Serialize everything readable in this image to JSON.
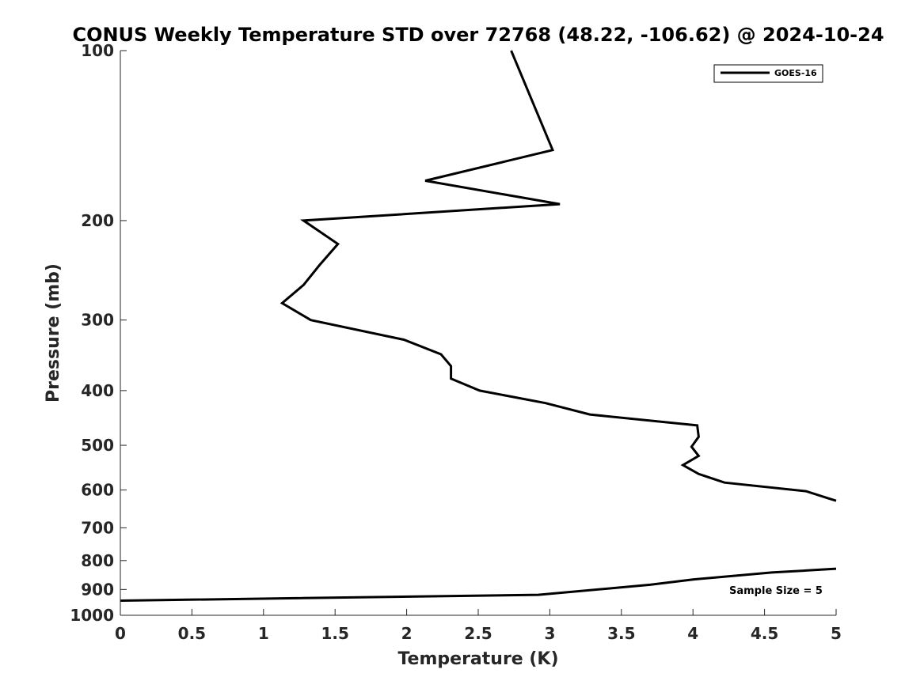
{
  "chart_data": {
    "type": "line",
    "title": "CONUS Weekly Temperature STD over 72768 (48.22, -106.62) @ 2024-10-24",
    "xlabel": "Temperature (K)",
    "ylabel": "Pressure (mb)",
    "xlim": [
      0,
      5
    ],
    "ylim": [
      1000,
      100
    ],
    "yscale": "log",
    "y_reversed": true,
    "xticks": [
      0,
      0.5,
      1,
      1.5,
      2,
      2.5,
      3,
      3.5,
      4,
      4.5,
      5
    ],
    "xtick_labels": [
      "0",
      "0.5",
      "1",
      "1.5",
      "2",
      "2.5",
      "3",
      "3.5",
      "4",
      "4.5",
      "5"
    ],
    "yticks": [
      100,
      200,
      300,
      400,
      500,
      600,
      700,
      800,
      900,
      1000
    ],
    "ytick_labels": [
      "100",
      "200",
      "300",
      "400",
      "500",
      "600",
      "700",
      "800",
      "900",
      "1000"
    ],
    "grid": false,
    "legend_position": "top-right",
    "annotation": "Sample Size = 5",
    "line_color": "#000000",
    "series": [
      {
        "name": "GOES-16",
        "segments": [
          [
            {
              "x": 2.73,
              "p": 100
            },
            {
              "x": 3.02,
              "p": 150
            },
            {
              "x": 2.13,
              "p": 170
            },
            {
              "x": 3.07,
              "p": 187
            },
            {
              "x": 1.28,
              "p": 200
            },
            {
              "x": 1.52,
              "p": 220
            },
            {
              "x": 1.39,
              "p": 240
            },
            {
              "x": 1.28,
              "p": 260
            },
            {
              "x": 1.13,
              "p": 280
            },
            {
              "x": 1.33,
              "p": 300
            },
            {
              "x": 1.98,
              "p": 325
            },
            {
              "x": 2.24,
              "p": 345
            },
            {
              "x": 2.31,
              "p": 362
            },
            {
              "x": 2.31,
              "p": 381
            },
            {
              "x": 2.51,
              "p": 400
            },
            {
              "x": 2.97,
              "p": 421
            },
            {
              "x": 3.28,
              "p": 441
            },
            {
              "x": 4.03,
              "p": 461
            },
            {
              "x": 4.04,
              "p": 483
            },
            {
              "x": 3.99,
              "p": 503
            },
            {
              "x": 4.04,
              "p": 522
            },
            {
              "x": 3.93,
              "p": 542
            },
            {
              "x": 4.04,
              "p": 562
            },
            {
              "x": 4.22,
              "p": 582
            },
            {
              "x": 4.79,
              "p": 603
            },
            {
              "x": 4.94,
              "p": 620
            },
            {
              "x": 5.0,
              "p": 627
            }
          ],
          [
            {
              "x": 0.0,
              "p": 942
            },
            {
              "x": 2.92,
              "p": 920
            },
            {
              "x": 3.7,
              "p": 883
            },
            {
              "x": 4.0,
              "p": 864
            },
            {
              "x": 4.55,
              "p": 840
            },
            {
              "x": 4.8,
              "p": 833
            },
            {
              "x": 5.0,
              "p": 827
            }
          ]
        ]
      }
    ]
  }
}
